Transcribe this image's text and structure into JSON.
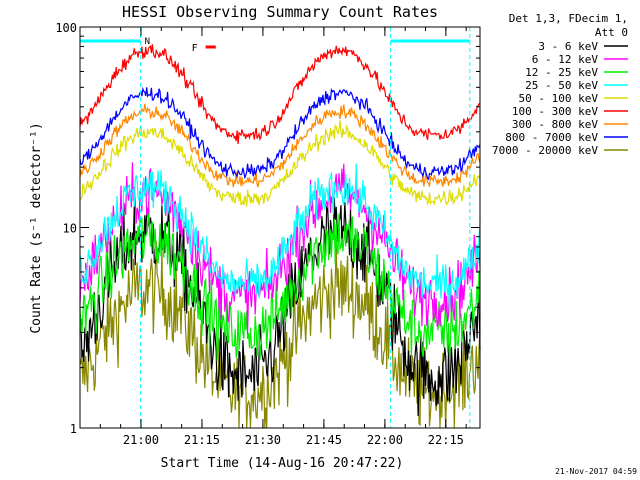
{
  "chart_data": {
    "type": "line",
    "title": "HESSI Observing Summary Count Rates",
    "xlabel": "Start Time (14-Aug-16 20:47:22)",
    "ylabel": "Count Rate (s⁻¹ detector⁻¹)",
    "ylim": [
      1,
      100
    ],
    "y_scale": "log",
    "y_ticks": [
      "1",
      "10",
      "100"
    ],
    "x_range_min_since_start": [
      -2.4,
      96
    ],
    "x_ticks": [
      {
        "label": "21:00",
        "min": 12.6
      },
      {
        "label": "21:15",
        "min": 27.6
      },
      {
        "label": "21:30",
        "min": 42.6
      },
      {
        "label": "21:45",
        "min": 57.6
      },
      {
        "label": "22:00",
        "min": 72.6
      },
      {
        "label": "22:15",
        "min": 87.6
      }
    ],
    "legend_header": [
      "Det 1,3, FDecim 1,",
      "Att 0"
    ],
    "series": [
      {
        "name": "3 - 6 keV",
        "color": "#000000",
        "base": 1.8,
        "peak": 9.5,
        "noise": 0.55
      },
      {
        "name": "6 - 12 keV",
        "color": "#ff00ff",
        "base": 4.5,
        "peak": 15,
        "noise": 0.4
      },
      {
        "name": "12 - 25 keV",
        "color": "#00ee00",
        "base": 3.0,
        "peak": 9.0,
        "noise": 0.45
      },
      {
        "name": "25 - 50 keV",
        "color": "#00ffff",
        "base": 5.2,
        "peak": 16,
        "noise": 0.3
      },
      {
        "name": "50 - 100 keV",
        "color": "#dddd00",
        "base": 14,
        "peak": 30,
        "noise": 0.12
      },
      {
        "name": "100 - 300 keV",
        "color": "#ff0000",
        "base": 29,
        "peak": 77,
        "noise": 0.1
      },
      {
        "name": "300 - 800 keV",
        "color": "#ff8800",
        "base": 17,
        "peak": 38,
        "noise": 0.1
      },
      {
        "name": "800 - 7000 keV",
        "color": "#0000ff",
        "base": 19,
        "peak": 47,
        "noise": 0.1
      },
      {
        "name": "7000 - 20000 keV",
        "color": "#888800",
        "base": 1.5,
        "peak": 5.0,
        "noise": 0.6
      }
    ],
    "flags": [
      {
        "label": "N",
        "color": "#00ffff"
      },
      {
        "label": "F",
        "color": "#ff0000"
      }
    ],
    "night_intervals_min": [
      [
        -2.4,
        12.5
      ],
      [
        74.0,
        93.5
      ]
    ],
    "flare_bar_min": [
      28.5,
      31.0
    ],
    "footer": "21-Nov-2017 04:59"
  }
}
